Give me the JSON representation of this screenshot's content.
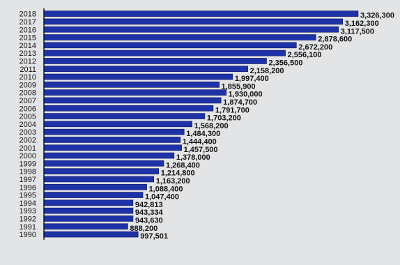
{
  "chart_data": {
    "type": "bar",
    "orientation": "horizontal",
    "categories": [
      "2018",
      "2017",
      "2016",
      "2015",
      "2014",
      "2013",
      "2012",
      "2011",
      "2010",
      "2009",
      "2008",
      "2007",
      "2006",
      "2005",
      "2004",
      "2003",
      "2002",
      "2001",
      "2000",
      "1999",
      "1998",
      "1997",
      "1996",
      "1995",
      "1994",
      "1993",
      "1992",
      "1991",
      "1990"
    ],
    "values": [
      3326300,
      3162300,
      3117500,
      2878600,
      2672200,
      2556100,
      2356500,
      2158200,
      1997400,
      1855900,
      1930000,
      1874700,
      1791700,
      1703200,
      1568200,
      1484300,
      1444400,
      1457500,
      1378000,
      1268400,
      1214800,
      1163200,
      1088400,
      1047400,
      942813,
      943334,
      943630,
      888200,
      997501
    ],
    "value_labels": [
      "3,326,300",
      "3,162,300",
      "3,117,500",
      "2,878,600",
      "2,672,200",
      "2,556,100",
      "2,356,500",
      "2,158,200",
      "1,997,400",
      "1,855,900",
      "1,930,000",
      "1,874,700",
      "1,791,700",
      "1,703,200",
      "1,568,200",
      "1,484,300",
      "1,444,400",
      "1,457,500",
      "1,378,000",
      "1,268,400",
      "1,214,800",
      "1,163,200",
      "1,088,400",
      "1,047,400",
      "942,813",
      "943,334",
      "943,630",
      "888,200",
      "997,501"
    ],
    "title": "",
    "xlabel": "",
    "ylabel": "",
    "grid": false,
    "legend": "none",
    "bar_color": "#1e32a8",
    "bar_edge_color": "#0a1560"
  }
}
